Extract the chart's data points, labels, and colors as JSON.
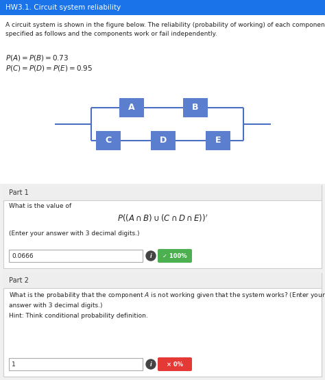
{
  "title_bar_color": "#1a73e8",
  "title_text": "HW3.1. Circuit system reliability",
  "title_text_color": "#ffffff",
  "title_fontsize": 7.5,
  "bg_color": "#ffffff",
  "body_text1": "A circuit system is shown in the figure below. The reliability (probability of working) of each component is\nspecified as follows and the components work or fail independently.",
  "body_fontsize": 6.5,
  "eq1": "$P(A) = P(B) = 0.73$",
  "eq2": "$P(C) = P(D) = P(E) = 0.95$",
  "eq_fontsize": 7.5,
  "box_color": "#5b7fce",
  "box_text_color": "#ffffff",
  "wire_color": "#4a6fc4",
  "part1_label": "Part 1",
  "part1_question": "What is the value of",
  "part1_formula": "$P((A \\cap B) \\cup (C \\cap D \\cap E))^{\\prime}$",
  "part1_hint": "(Enter your answer with 3 decimal digits.)",
  "part1_answer": "0.0666",
  "part1_badge_color": "#4caf50",
  "part1_badge_text": "✓ 100%",
  "part2_label": "Part 2",
  "part2_question": "What is the probability that the component $\\mathit{A}$ is not working given that the system works? (Enter your\nanswer with 3 decimal digits.)",
  "part2_hint": "Hint: Think conditional probability definition.",
  "part2_answer": "1",
  "part2_badge_color": "#e53935",
  "part2_badge_text": "× 0%",
  "section_label_fontsize": 7,
  "question_fontsize": 6.5,
  "answer_fontsize": 6.5,
  "formula_fontsize": 8.5,
  "badge_fontsize": 6,
  "header_bg": "#eeeeee",
  "card_bg": "#f8f8f8",
  "card_border": "#cccccc",
  "white": "#ffffff",
  "dark_text": "#222222",
  "gray_text": "#555555",
  "info_circle_color": "#444444"
}
